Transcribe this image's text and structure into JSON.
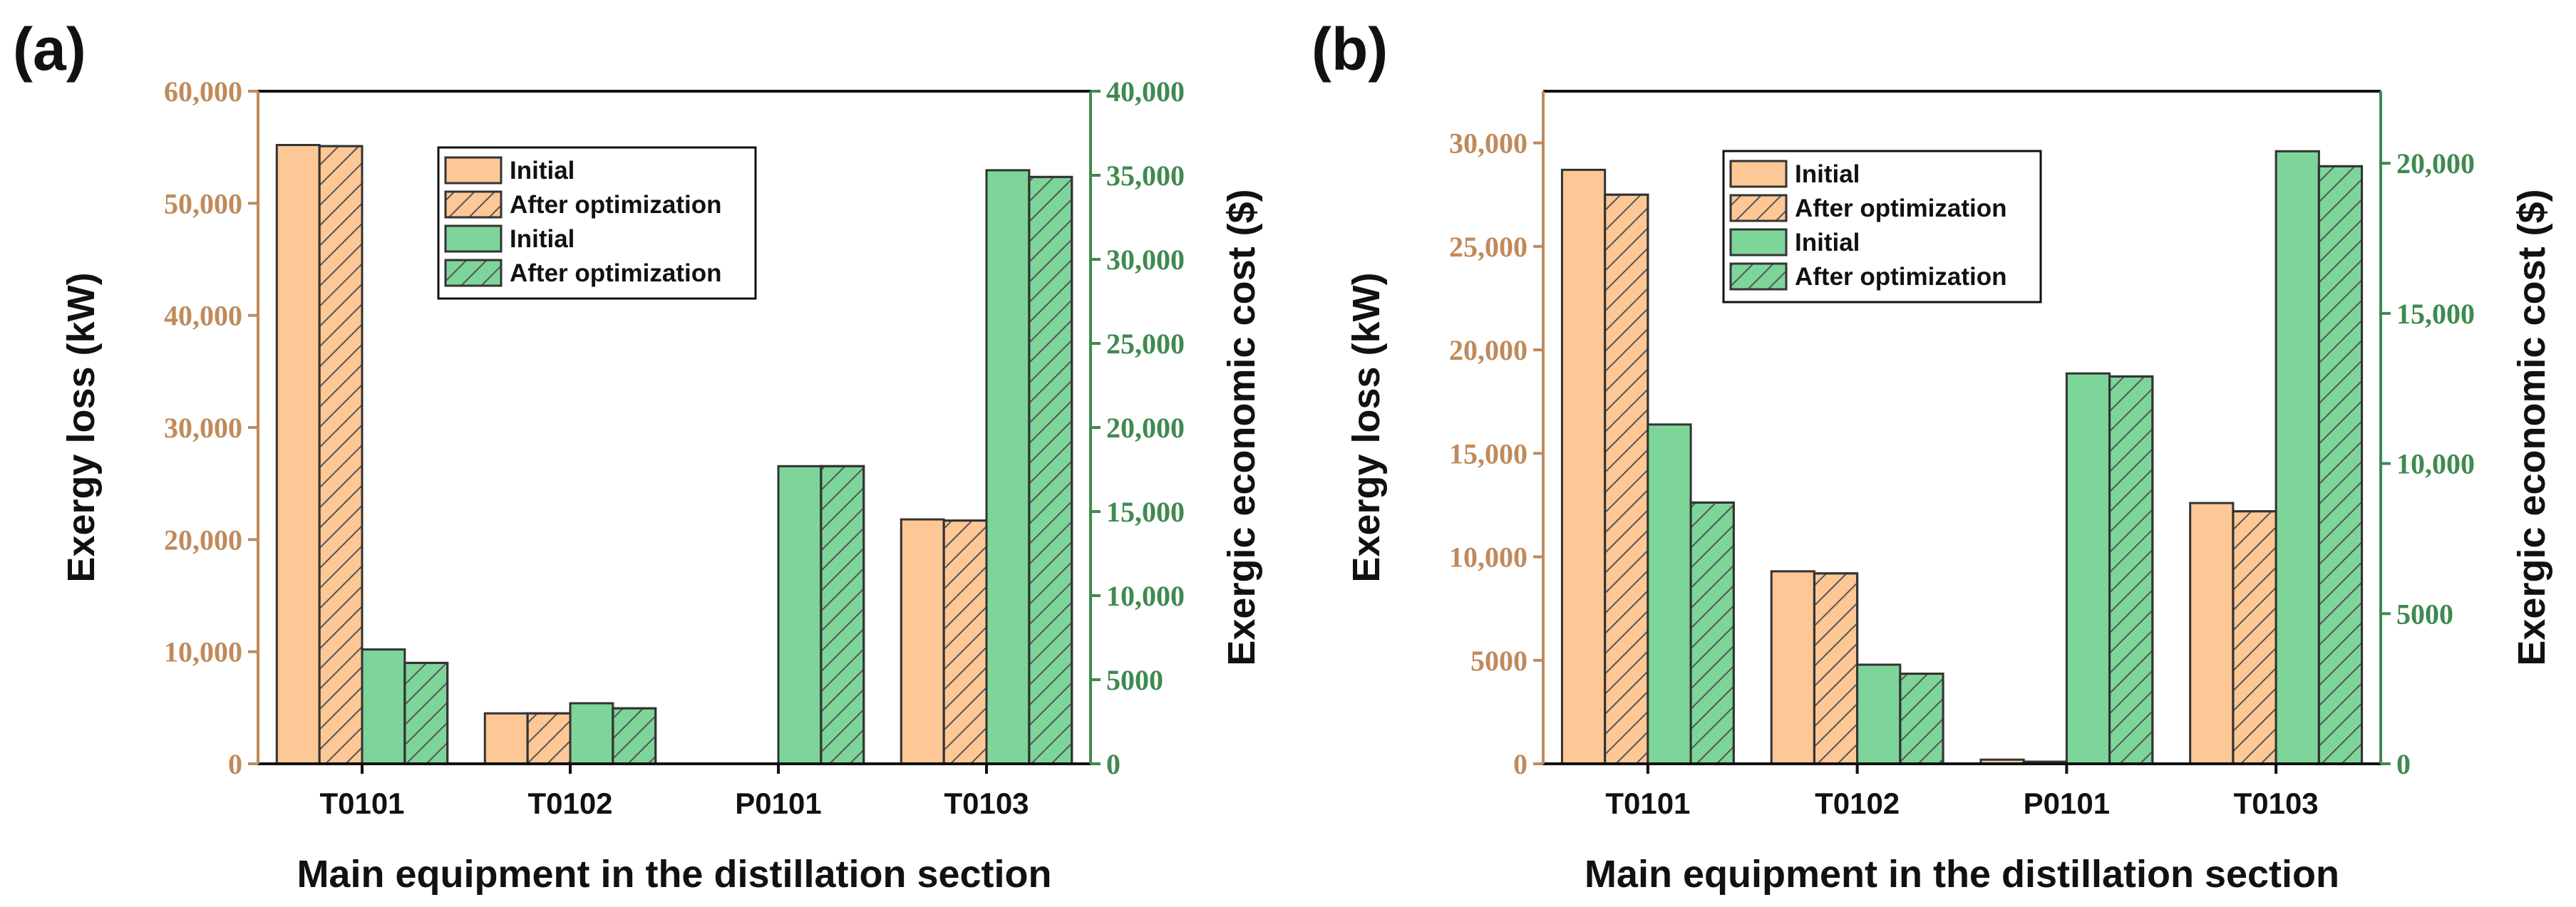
{
  "colors": {
    "initial_loss": "#fdc796",
    "initial_cost": "#7dd59a",
    "hatch": "#555555",
    "bar_stroke": "#333333",
    "left_axis": "#c08a5b",
    "right_axis": "#3f8a4f"
  },
  "chart_data": [
    {
      "panel_label": "(a)",
      "type": "bar",
      "xlabel": "Main equipment in the distillation section",
      "ylabel_left": "Exergy loss (kW)",
      "ylabel_right": "Exergic economic cost ($)",
      "categories": [
        "T0101",
        "T0102",
        "P0101",
        "T0103"
      ],
      "ylim_left": [
        0,
        60000
      ],
      "ylim_right": [
        0,
        40000
      ],
      "yticks_left": [
        {
          "value": 0,
          "label": "0"
        },
        {
          "value": 10000,
          "label": "10,000"
        },
        {
          "value": 20000,
          "label": "20,000"
        },
        {
          "value": 30000,
          "label": "30,000"
        },
        {
          "value": 40000,
          "label": "40,000"
        },
        {
          "value": 50000,
          "label": "50,000"
        },
        {
          "value": 60000,
          "label": "60,000"
        }
      ],
      "yticks_right": [
        {
          "value": 0,
          "label": "0"
        },
        {
          "value": 5000,
          "label": "5000"
        },
        {
          "value": 10000,
          "label": "10,000"
        },
        {
          "value": 15000,
          "label": "15,000"
        },
        {
          "value": 20000,
          "label": "20,000"
        },
        {
          "value": 25000,
          "label": "25,000"
        },
        {
          "value": 30000,
          "label": "30,000"
        },
        {
          "value": 35000,
          "label": "35,000"
        },
        {
          "value": 40000,
          "label": "40,000"
        }
      ],
      "legend": [
        "Initial",
        "After optimization",
        "Initial",
        "After optimization"
      ],
      "series": [
        {
          "name": "Initial",
          "axis": "left",
          "style": "solid-orange",
          "values": [
            55200,
            4500,
            0,
            21800
          ]
        },
        {
          "name": "After optimization",
          "axis": "left",
          "style": "hatched-orange",
          "values": [
            55100,
            4500,
            0,
            21700
          ]
        },
        {
          "name": "Initial",
          "axis": "right",
          "style": "solid-green",
          "values": [
            6800,
            3600,
            17700,
            35300
          ]
        },
        {
          "name": "After optimization",
          "axis": "right",
          "style": "hatched-green",
          "values": [
            6000,
            3300,
            17700,
            34900
          ]
        }
      ]
    },
    {
      "panel_label": "(b)",
      "type": "bar",
      "xlabel": "Main equipment in the distillation section",
      "ylabel_left": "Exergy loss (kW)",
      "ylabel_right": "Exergic economic cost ($)",
      "categories": [
        "T0101",
        "T0102",
        "P0101",
        "T0103"
      ],
      "ylim_left": [
        0,
        32500
      ],
      "ylim_right": [
        0,
        22400
      ],
      "yticks_left": [
        {
          "value": 0,
          "label": "0"
        },
        {
          "value": 5000,
          "label": "5000"
        },
        {
          "value": 10000,
          "label": "10,000"
        },
        {
          "value": 15000,
          "label": "15,000"
        },
        {
          "value": 20000,
          "label": "20,000"
        },
        {
          "value": 25000,
          "label": "25,000"
        },
        {
          "value": 30000,
          "label": "30,000"
        }
      ],
      "yticks_right": [
        {
          "value": 0,
          "label": "0"
        },
        {
          "value": 5000,
          "label": "5000"
        },
        {
          "value": 10000,
          "label": "10,000"
        },
        {
          "value": 15000,
          "label": "15,000"
        },
        {
          "value": 20000,
          "label": "20,000"
        }
      ],
      "legend": [
        "Initial",
        "After optimization",
        "Initial",
        "After optimization"
      ],
      "series": [
        {
          "name": "Initial",
          "axis": "left",
          "style": "solid-orange",
          "values": [
            28700,
            9300,
            200,
            12600
          ]
        },
        {
          "name": "After optimization",
          "axis": "left",
          "style": "hatched-orange",
          "values": [
            27500,
            9200,
            100,
            12200
          ]
        },
        {
          "name": "Initial",
          "axis": "right",
          "style": "solid-green",
          "values": [
            11300,
            3300,
            13000,
            20400
          ]
        },
        {
          "name": "After optimization",
          "axis": "right",
          "style": "hatched-green",
          "values": [
            8700,
            3000,
            12900,
            19900
          ]
        }
      ]
    }
  ]
}
